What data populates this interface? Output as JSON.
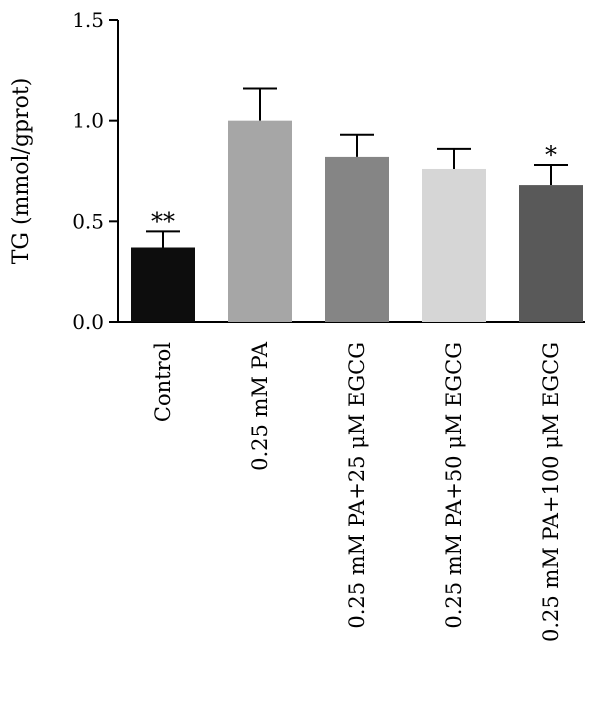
{
  "chart_data": {
    "type": "bar",
    "title": "",
    "ylabel": "TG (mmol/gprot)",
    "xlabel": "",
    "ylim": [
      0,
      1.5
    ],
    "yticks": [
      "0.0",
      "0.5",
      "1.0",
      "1.5"
    ],
    "grid": false,
    "categories": [
      "Control",
      "0.25 mM PA",
      "0.25 mM PA+25 μM EGCG",
      "0.25 mM PA+50 μM EGCG",
      "0.25 mM PA+100 μM EGCG"
    ],
    "values": [
      0.37,
      1.0,
      0.82,
      0.76,
      0.68
    ],
    "errors": [
      0.08,
      0.16,
      0.11,
      0.1,
      0.1
    ],
    "significance": [
      "**",
      "",
      "",
      "",
      "*"
    ],
    "colors": [
      "#0d0d0d",
      "#a6a6a6",
      "#858585",
      "#d6d6d6",
      "#595959"
    ]
  }
}
